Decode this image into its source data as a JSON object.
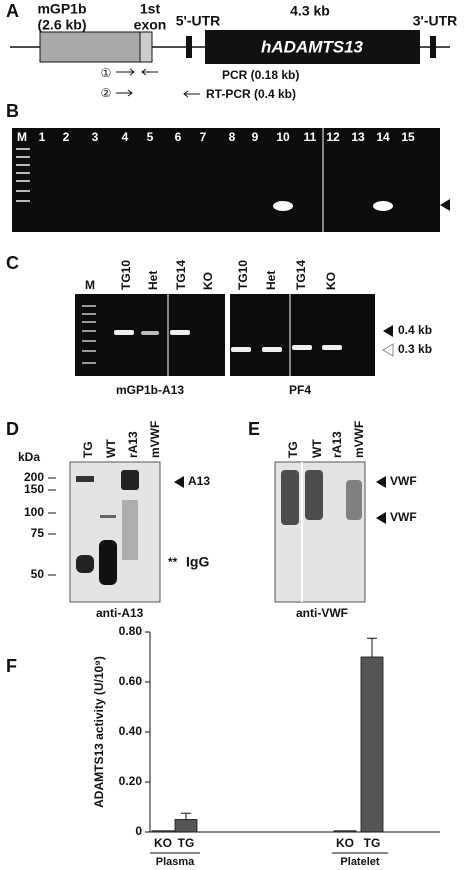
{
  "panel_a": {
    "letter": "A",
    "promoter": "mGP1b",
    "promoter_size": "(2.6 kb)",
    "exon_1": "1st",
    "exon_2": "exon",
    "utr5": "5'-UTR",
    "gene_size": "4.3 kb",
    "gene": "hADAMTS13",
    "utr3": "3'-UTR",
    "primer_1": "①",
    "primer_2": "②",
    "pcr": "PCR (0.18 kb)",
    "rtpcr": "RT-PCR (0.4 kb)"
  },
  "panel_b": {
    "letter": "B",
    "lanes": [
      "M",
      "1",
      "2",
      "3",
      "4",
      "5",
      "6",
      "7",
      "8",
      "9",
      "10",
      "11",
      "12",
      "13",
      "14",
      "15"
    ]
  },
  "panel_c": {
    "letter": "C",
    "lanes_left": [
      "M",
      "TG10",
      "Het",
      "TG14",
      "KO"
    ],
    "lanes_right": [
      "TG10",
      "Het",
      "TG14",
      "KO"
    ],
    "size_upper": "0.4 kb",
    "size_lower": "0.3 kb",
    "caption_left": "mGP1b-A13",
    "caption_right": "PF4"
  },
  "panel_d": {
    "letter": "D",
    "unit": "kDa",
    "markers": [
      "200",
      "150",
      "100",
      "75",
      "50"
    ],
    "lanes": [
      "TG",
      "WT",
      "rA13",
      "mVWF"
    ],
    "band": "A13",
    "stars": "**",
    "igg": "IgG",
    "caption": "anti-A13"
  },
  "panel_e": {
    "letter": "E",
    "lanes": [
      "TG",
      "WT",
      "rA13",
      "mVWF"
    ],
    "band_1": "VWF",
    "band_2": "VWF",
    "caption": "anti-VWF"
  },
  "chart_data": {
    "type": "bar",
    "letter": "F",
    "ylabel": "ADAMTS13 activity (U/10⁹)",
    "categories": [
      "KO",
      "TG",
      "KO",
      "TG"
    ],
    "groups": [
      "Plasma",
      "Platelet"
    ],
    "values": [
      0.005,
      0.05,
      0.005,
      0.7
    ],
    "errors": [
      0,
      0.025,
      0,
      0.075
    ],
    "color": "#555555",
    "ylim": [
      0,
      0.8
    ],
    "yticks": [
      0,
      {
        "value": 0.2,
        "label": "0.20"
      },
      {
        "value": 0.4,
        "label": "0.40"
      },
      {
        "value": 0.6,
        "label": "0.60"
      },
      {
        "value": 0.8,
        "label": "0.80"
      }
    ]
  }
}
